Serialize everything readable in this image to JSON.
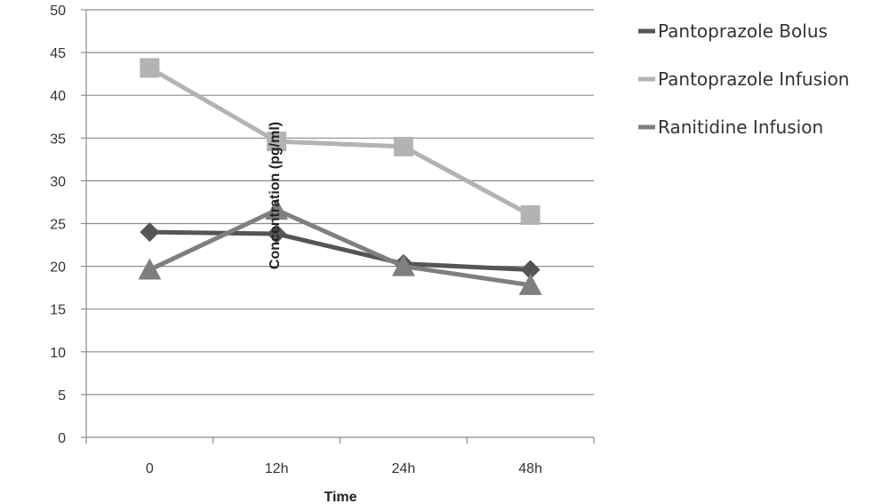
{
  "chart_data": {
    "type": "line",
    "title": "",
    "xlabel": "Time",
    "ylabel": "Concentration (pg/ml)",
    "categories": [
      "0",
      "12h",
      "24h",
      "48h"
    ],
    "ylim": [
      0,
      50
    ],
    "yticks": [
      0,
      5,
      10,
      15,
      20,
      25,
      30,
      35,
      40,
      45,
      50
    ],
    "grid": "horizontal",
    "legend_position": "right",
    "series": [
      {
        "name": "Pantoprazole Bolus",
        "values": [
          24.0,
          23.8,
          20.3,
          19.6
        ],
        "color": "#555555",
        "marker": "diamond"
      },
      {
        "name": "Pantoprazole Infusion",
        "values": [
          43.2,
          34.6,
          34.0,
          26.0
        ],
        "color": "#b3b3b3",
        "marker": "square"
      },
      {
        "name": "Ranitidine Infusion",
        "values": [
          19.6,
          26.6,
          20.0,
          17.8
        ],
        "color": "#7f7f7f",
        "marker": "triangle"
      }
    ]
  }
}
